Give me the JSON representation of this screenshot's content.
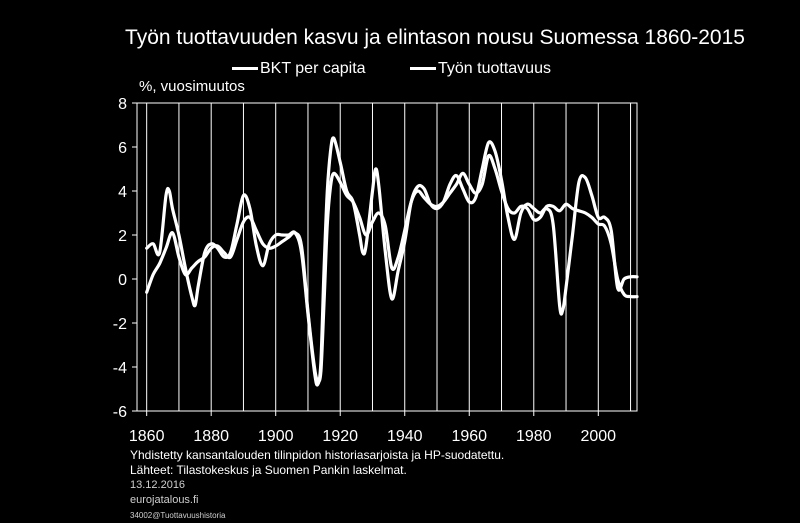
{
  "chart_data": {
    "type": "line",
    "title": "Työn tuottavuuden kasvu ja elintason nousu Suomessa 1860-2015",
    "ylabel": "%, vuosimuutos",
    "xlim": [
      1857,
      2012
    ],
    "ylim": [
      -6,
      8
    ],
    "xticks": [
      1860,
      1880,
      1900,
      1920,
      1940,
      1960,
      1980,
      2000
    ],
    "yticks": [
      -6,
      -4,
      -2,
      0,
      2,
      4,
      6,
      8
    ],
    "grid": "vertical",
    "legend_position": "top",
    "series": [
      {
        "name": "BKT per capita",
        "points": [
          [
            1860,
            -0.6
          ],
          [
            1862,
            0.2
          ],
          [
            1864,
            0.7
          ],
          [
            1866,
            1.4
          ],
          [
            1868,
            2.1
          ],
          [
            1870,
            1.0
          ],
          [
            1872,
            0.2
          ],
          [
            1874,
            0.5
          ],
          [
            1876,
            0.8
          ],
          [
            1878,
            1.0
          ],
          [
            1880,
            1.4
          ],
          [
            1882,
            1.5
          ],
          [
            1884,
            1.2
          ],
          [
            1886,
            1.0
          ],
          [
            1888,
            1.8
          ],
          [
            1890,
            2.6
          ],
          [
            1892,
            2.8
          ],
          [
            1894,
            2.2
          ],
          [
            1896,
            1.6
          ],
          [
            1898,
            1.4
          ],
          [
            1900,
            1.5
          ],
          [
            1902,
            1.7
          ],
          [
            1904,
            1.9
          ],
          [
            1906,
            2.1
          ],
          [
            1908,
            1.5
          ],
          [
            1910,
            -1.5
          ],
          [
            1912,
            -4.0
          ],
          [
            1913,
            -4.6
          ],
          [
            1914,
            -4.2
          ],
          [
            1915,
            -1.0
          ],
          [
            1916,
            2.5
          ],
          [
            1917,
            4.2
          ],
          [
            1918,
            4.8
          ],
          [
            1920,
            4.4
          ],
          [
            1922,
            3.8
          ],
          [
            1924,
            3.5
          ],
          [
            1926,
            2.8
          ],
          [
            1928,
            2.0
          ],
          [
            1930,
            2.6
          ],
          [
            1932,
            3.0
          ],
          [
            1934,
            2.4
          ],
          [
            1936,
            0.5
          ],
          [
            1938,
            1.0
          ],
          [
            1940,
            2.2
          ],
          [
            1942,
            3.5
          ],
          [
            1944,
            4.0
          ],
          [
            1946,
            3.7
          ],
          [
            1948,
            3.4
          ],
          [
            1950,
            3.3
          ],
          [
            1952,
            3.5
          ],
          [
            1954,
            3.9
          ],
          [
            1956,
            4.3
          ],
          [
            1958,
            4.8
          ],
          [
            1960,
            4.3
          ],
          [
            1962,
            3.9
          ],
          [
            1964,
            4.3
          ],
          [
            1966,
            5.6
          ],
          [
            1968,
            5.0
          ],
          [
            1970,
            4.0
          ],
          [
            1972,
            3.2
          ],
          [
            1974,
            3.0
          ],
          [
            1976,
            3.3
          ],
          [
            1978,
            3.2
          ],
          [
            1980,
            2.7
          ],
          [
            1982,
            2.8
          ],
          [
            1984,
            3.3
          ],
          [
            1986,
            3.3
          ],
          [
            1988,
            3.1
          ],
          [
            1990,
            3.4
          ],
          [
            1992,
            3.2
          ],
          [
            1994,
            3.1
          ],
          [
            1996,
            3.0
          ],
          [
            1998,
            2.8
          ],
          [
            2000,
            2.5
          ],
          [
            2002,
            2.4
          ],
          [
            2004,
            1.6
          ],
          [
            2006,
            0.0
          ],
          [
            2008,
            -0.7
          ],
          [
            2010,
            -0.8
          ],
          [
            2012,
            -0.8
          ]
        ]
      },
      {
        "name": "Työn tuottavuus",
        "points": [
          [
            1860,
            1.4
          ],
          [
            1862,
            1.6
          ],
          [
            1864,
            1.2
          ],
          [
            1866,
            3.8
          ],
          [
            1867,
            4.0
          ],
          [
            1868,
            3.2
          ],
          [
            1870,
            2.0
          ],
          [
            1872,
            0.5
          ],
          [
            1874,
            -0.8
          ],
          [
            1875,
            -1.2
          ],
          [
            1876,
            -0.3
          ],
          [
            1878,
            1.2
          ],
          [
            1880,
            1.6
          ],
          [
            1882,
            1.4
          ],
          [
            1884,
            1.0
          ],
          [
            1886,
            1.2
          ],
          [
            1888,
            2.5
          ],
          [
            1890,
            3.8
          ],
          [
            1892,
            3.2
          ],
          [
            1894,
            1.5
          ],
          [
            1896,
            0.6
          ],
          [
            1898,
            1.6
          ],
          [
            1900,
            2.0
          ],
          [
            1902,
            2.0
          ],
          [
            1904,
            2.0
          ],
          [
            1906,
            2.1
          ],
          [
            1908,
            1.2
          ],
          [
            1910,
            -1.6
          ],
          [
            1912,
            -4.2
          ],
          [
            1913,
            -4.8
          ],
          [
            1914,
            -3.8
          ],
          [
            1915,
            0.5
          ],
          [
            1916,
            4.0
          ],
          [
            1917,
            5.8
          ],
          [
            1918,
            6.4
          ],
          [
            1920,
            5.3
          ],
          [
            1922,
            4.0
          ],
          [
            1924,
            3.5
          ],
          [
            1926,
            2.0
          ],
          [
            1927,
            1.2
          ],
          [
            1928,
            1.5
          ],
          [
            1930,
            4.0
          ],
          [
            1931,
            5.0
          ],
          [
            1932,
            4.2
          ],
          [
            1934,
            1.2
          ],
          [
            1936,
            -0.9
          ],
          [
            1938,
            0.4
          ],
          [
            1940,
            1.7
          ],
          [
            1942,
            3.5
          ],
          [
            1944,
            4.2
          ],
          [
            1946,
            4.1
          ],
          [
            1948,
            3.4
          ],
          [
            1950,
            3.2
          ],
          [
            1952,
            3.5
          ],
          [
            1954,
            4.3
          ],
          [
            1956,
            4.7
          ],
          [
            1958,
            4.1
          ],
          [
            1960,
            3.5
          ],
          [
            1962,
            3.7
          ],
          [
            1964,
            5.0
          ],
          [
            1966,
            6.2
          ],
          [
            1968,
            5.8
          ],
          [
            1970,
            4.5
          ],
          [
            1972,
            2.8
          ],
          [
            1974,
            1.8
          ],
          [
            1976,
            3.0
          ],
          [
            1978,
            3.4
          ],
          [
            1980,
            3.2
          ],
          [
            1982,
            3.0
          ],
          [
            1984,
            3.2
          ],
          [
            1986,
            2.5
          ],
          [
            1988,
            -1.2
          ],
          [
            1989,
            -1.4
          ],
          [
            1990,
            -0.4
          ],
          [
            1992,
            2.0
          ],
          [
            1994,
            4.4
          ],
          [
            1996,
            4.6
          ],
          [
            1998,
            3.8
          ],
          [
            2000,
            2.8
          ],
          [
            2002,
            2.8
          ],
          [
            2004,
            2.2
          ],
          [
            2006,
            -0.4
          ],
          [
            2008,
            0.0
          ],
          [
            2010,
            0.1
          ],
          [
            2012,
            0.1
          ]
        ]
      }
    ]
  },
  "notes": {
    "line1": "Yhdistetty kansantalouden tilinpidon historiasarjoista ja HP-suodatettu.",
    "line2": "Lähteet: Tilastokeskus ja Suomen Pankin laskelmat.",
    "date": "13.12.2016",
    "site": "eurojatalous.fi",
    "code": "34002@Tuottavuushistoria"
  },
  "colors": {
    "background": "#000000",
    "line": "#ffffff",
    "grid": "#ffffff"
  }
}
